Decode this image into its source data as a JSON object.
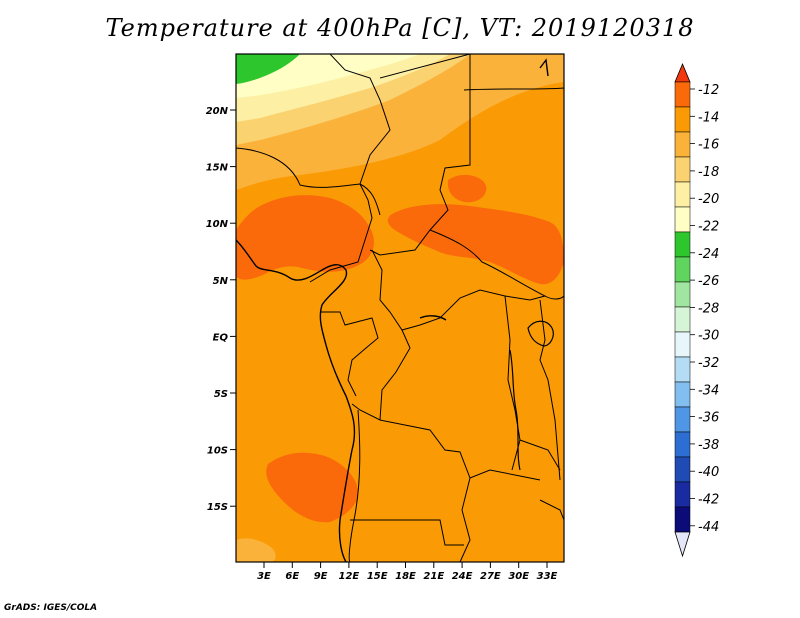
{
  "title": "Temperature at 400hPa [C], VT: 2019120318",
  "credit": "GrADS: IGES/COLA",
  "lat_ticks": [
    "20N",
    "15N",
    "10N",
    "5N",
    "EQ",
    "5S",
    "10S",
    "15S"
  ],
  "lon_ticks": [
    "3E",
    "6E",
    "9E",
    "12E",
    "15E",
    "18E",
    "21E",
    "24E",
    "27E",
    "30E",
    "33E"
  ],
  "colorbar": {
    "labels": [
      "-12",
      "-14",
      "-16",
      "-18",
      "-20",
      "-22",
      "-24",
      "-26",
      "-28",
      "-30",
      "-32",
      "-34",
      "-36",
      "-38",
      "-40",
      "-42",
      "-44"
    ],
    "colors": [
      "#f2380f",
      "#fa6a0a",
      "#fa9b05",
      "#fbb23a",
      "#fbd270",
      "#fdf0a5",
      "#fefec5",
      "#2dc72d",
      "#5fd55f",
      "#a0e6a0",
      "#d6f5d6",
      "#e6f6fa",
      "#b4dcf5",
      "#82bef0",
      "#5096e6",
      "#2d6ed2",
      "#1e4bb4",
      "#1a2aa0",
      "#0c0c78",
      "#e6e6fa"
    ]
  }
}
